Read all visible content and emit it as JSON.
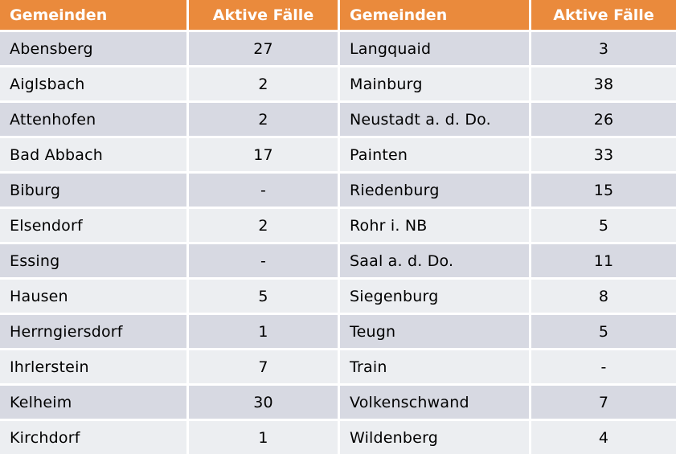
{
  "header": {
    "col1": "Gemeinden",
    "col2": "Aktive Fälle",
    "col3": "Gemeinden",
    "col4": "Aktive Fälle"
  },
  "colors": {
    "header_bg": "#ea8a3c",
    "row_dark": "#d7d9e2",
    "row_light": "#eceef1"
  },
  "rows": [
    {
      "left_name": "Abensberg",
      "left_cases": "27",
      "right_name": "Langquaid",
      "right_cases": "3"
    },
    {
      "left_name": "Aiglsbach",
      "left_cases": "2",
      "right_name": "Mainburg",
      "right_cases": "38"
    },
    {
      "left_name": "Attenhofen",
      "left_cases": "2",
      "right_name": "Neustadt a. d. Do.",
      "right_cases": "26"
    },
    {
      "left_name": "Bad Abbach",
      "left_cases": "17",
      "right_name": "Painten",
      "right_cases": "33"
    },
    {
      "left_name": "Biburg",
      "left_cases": "-",
      "right_name": "Riedenburg",
      "right_cases": "15"
    },
    {
      "left_name": "Elsendorf",
      "left_cases": "2",
      "right_name": "Rohr i. NB",
      "right_cases": "5"
    },
    {
      "left_name": "Essing",
      "left_cases": "-",
      "right_name": "Saal a. d. Do.",
      "right_cases": "11"
    },
    {
      "left_name": "Hausen",
      "left_cases": "5",
      "right_name": "Siegenburg",
      "right_cases": "8"
    },
    {
      "left_name": "Herrngiersdorf",
      "left_cases": "1",
      "right_name": "Teugn",
      "right_cases": "5"
    },
    {
      "left_name": "Ihrlerstein",
      "left_cases": "7",
      "right_name": "Train",
      "right_cases": "-"
    },
    {
      "left_name": "Kelheim",
      "left_cases": "30",
      "right_name": "Volkenschwand",
      "right_cases": "7"
    },
    {
      "left_name": "Kirchdorf",
      "left_cases": "1",
      "right_name": "Wildenberg",
      "right_cases": "4"
    }
  ]
}
